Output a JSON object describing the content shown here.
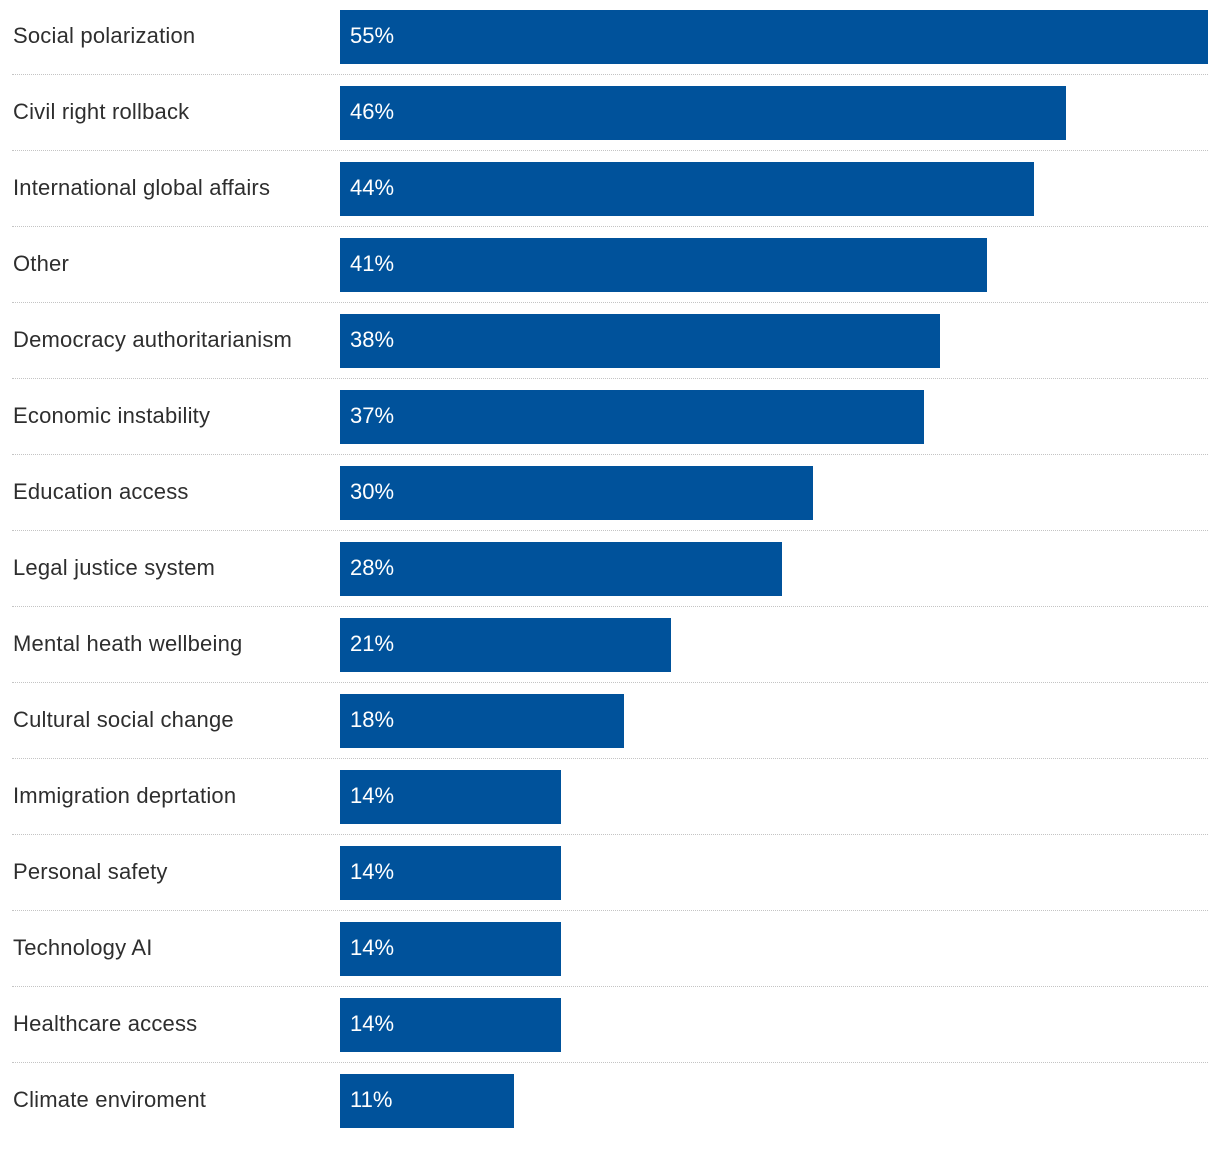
{
  "colors": {
    "bar": "#00529b",
    "bar_text": "#ffffff",
    "label_text": "#2e2e2e",
    "divider": "#c4c4c4",
    "background": "#ffffff"
  },
  "chart_data": {
    "type": "bar",
    "orientation": "horizontal",
    "title": "",
    "xlabel": "",
    "ylabel": "",
    "xlim": [
      0,
      55
    ],
    "grid": false,
    "legend": "none",
    "categories": [
      "Social polarization",
      "Civil right rollback",
      "International global affairs",
      "Other",
      "Democracy authoritarianism",
      "Economic instability",
      "Education access",
      "Legal justice system",
      "Mental heath wellbeing",
      "Cultural social change",
      "Immigration deprtation",
      "Personal safety",
      "Technology AI",
      "Healthcare access",
      "Climate enviroment"
    ],
    "values": [
      55,
      46,
      44,
      41,
      38,
      37,
      30,
      28,
      21,
      18,
      14,
      14,
      14,
      14,
      11
    ],
    "value_labels": [
      "55%",
      "46%",
      "44%",
      "41%",
      "38%",
      "37%",
      "30%",
      "28%",
      "21%",
      "18%",
      "14%",
      "14%",
      "14%",
      "14%",
      "11%"
    ]
  }
}
